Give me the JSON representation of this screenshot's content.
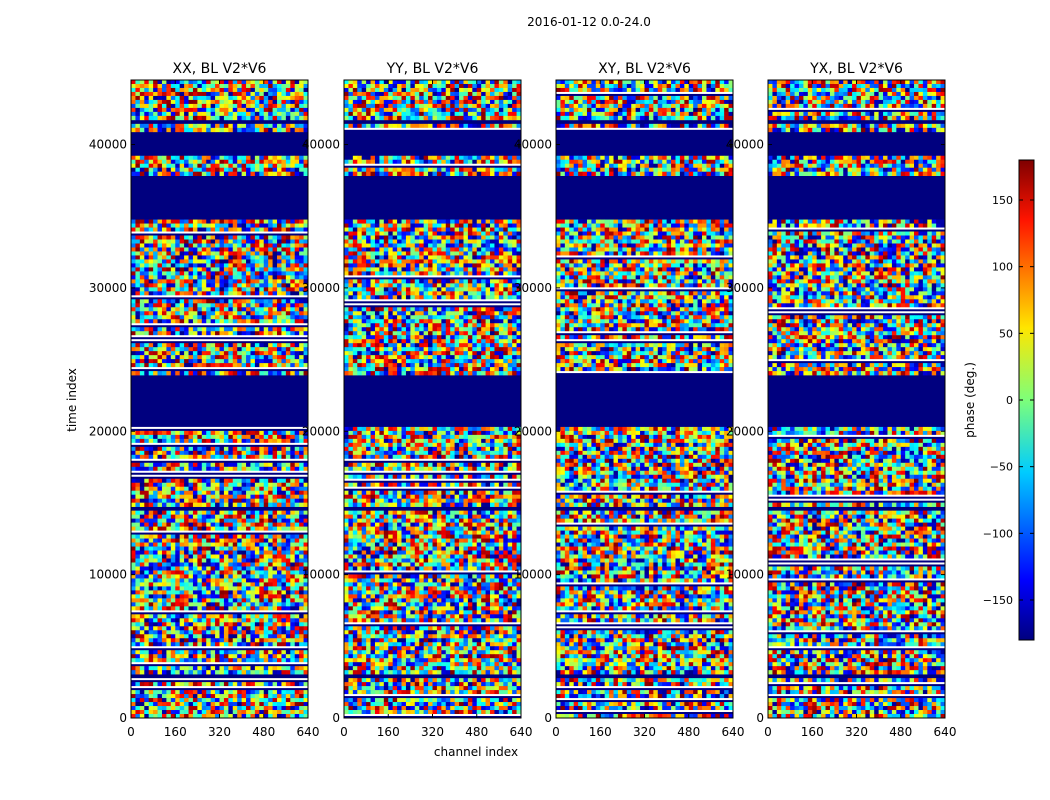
{
  "figure": {
    "suptitle": "2016-01-12 0.0-24.0"
  },
  "chart_data": {
    "type": "heatmap",
    "title": "2016-01-12 0.0-24.0",
    "xlabel": "channel index",
    "ylabel": "time index",
    "xlim": [
      0,
      640
    ],
    "ylim": [
      0,
      44500
    ],
    "xticks": [
      0,
      160,
      320,
      480,
      640
    ],
    "yticks": [
      0,
      10000,
      20000,
      30000,
      40000
    ],
    "colormap": "jet",
    "colorbar": {
      "label": "phase (deg.)",
      "range": [
        -180,
        180
      ],
      "ticks": [
        -150,
        -100,
        -50,
        0,
        50,
        100,
        150
      ],
      "tick_labels": [
        "−150",
        "−100",
        "−50",
        "0",
        "50",
        "100",
        "150"
      ]
    },
    "panels": [
      {
        "name": "xx",
        "title": "XX, BL V2*V6",
        "seed": 11
      },
      {
        "name": "yy",
        "title": "YY, BL V2*V6",
        "seed": 23
      },
      {
        "name": "xy",
        "title": "XY, BL V2*V6",
        "seed": 37
      },
      {
        "name": "yx",
        "title": "YX, BL V2*V6",
        "seed": 53
      }
    ],
    "flagged_time_ranges": [
      [
        34800,
        37900
      ],
      [
        39300,
        40900
      ],
      [
        41400,
        41850
      ],
      [
        20200,
        23900
      ],
      [
        2900,
        3050
      ],
      [
        4600,
        4750
      ],
      [
        11050,
        11150
      ],
      [
        14600,
        14720
      ],
      [
        30250,
        30400
      ],
      [
        42800,
        42950
      ]
    ]
  }
}
